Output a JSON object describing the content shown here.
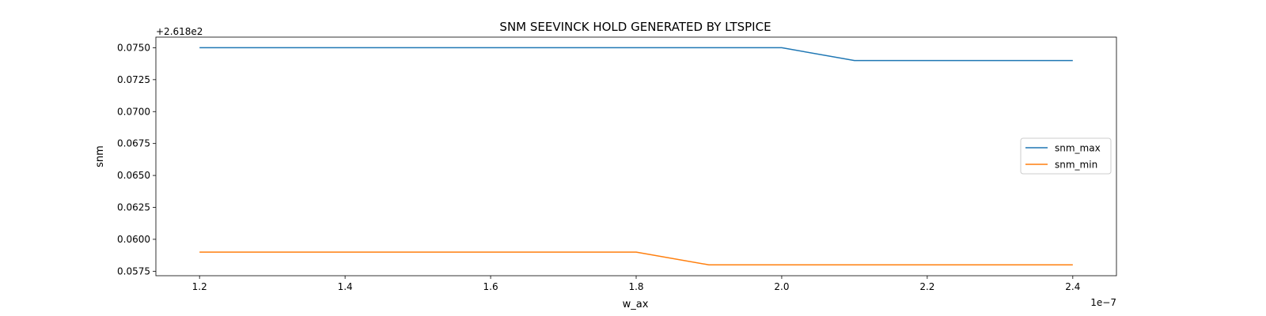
{
  "chart_data": {
    "type": "line",
    "title": "SNM SEEVINCK HOLD GENERATED BY LTSPICE",
    "xlabel": "w_ax",
    "ylabel": "snm",
    "x_multiplier_label": "1e−7",
    "y_offset_label": "+2.618e2",
    "x": [
      1.2,
      1.3,
      1.4,
      1.5,
      1.6,
      1.7,
      1.8,
      1.9,
      2.0,
      2.1,
      2.2,
      2.3,
      2.4
    ],
    "xlim": [
      1.14,
      2.46
    ],
    "ylim": [
      0.05715,
      0.07583
    ],
    "x_ticks": [
      1.2,
      1.4,
      1.6,
      1.8,
      2.0,
      2.2,
      2.4
    ],
    "x_tick_labels": [
      "1.2",
      "1.4",
      "1.6",
      "1.8",
      "2.0",
      "2.2",
      "2.4"
    ],
    "y_ticks": [
      0.0575,
      0.06,
      0.0625,
      0.065,
      0.0675,
      0.07,
      0.0725,
      0.075
    ],
    "y_tick_labels": [
      "0.0575",
      "0.0600",
      "0.0625",
      "0.0650",
      "0.0675",
      "0.0700",
      "0.0725",
      "0.0750"
    ],
    "grid": false,
    "legend_position": "center-right",
    "series": [
      {
        "name": "snm_max",
        "color": "#1f77b4",
        "values": [
          0.075,
          0.075,
          0.075,
          0.075,
          0.075,
          0.075,
          0.075,
          0.075,
          0.075,
          0.074,
          0.074,
          0.074,
          0.074
        ]
      },
      {
        "name": "snm_min",
        "color": "#ff7f0e",
        "values": [
          0.059,
          0.059,
          0.059,
          0.059,
          0.059,
          0.059,
          0.059,
          0.058,
          0.058,
          0.058,
          0.058,
          0.058,
          0.058
        ]
      }
    ]
  }
}
